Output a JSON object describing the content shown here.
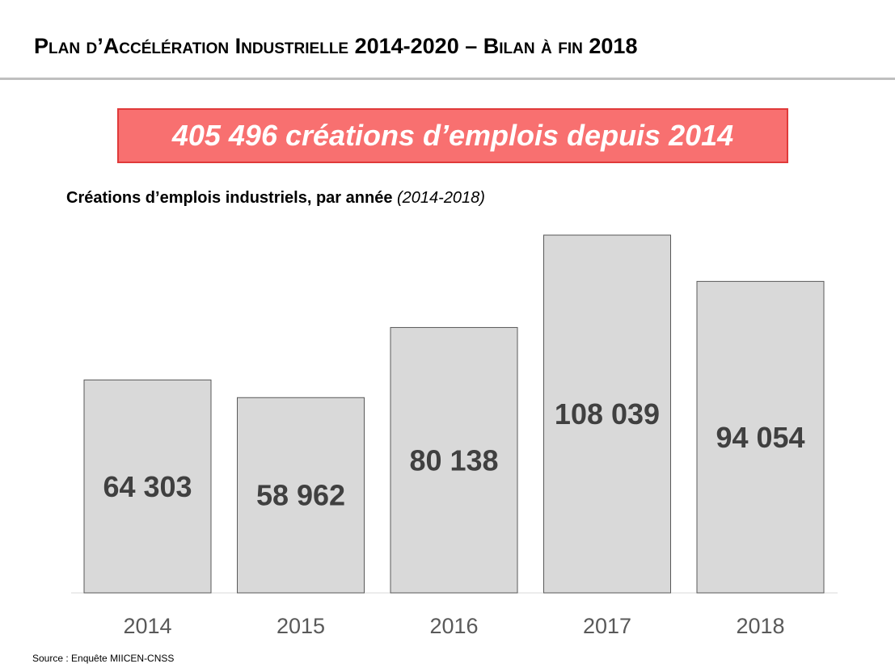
{
  "slide": {
    "title": "Plan d’Accélération Industrielle 2014-2020 – Bilan à fin 2018",
    "highlight": "405 496 créations d’emplois depuis 2014",
    "source": "Source : Enquête MIICEN-CNSS"
  },
  "chart_data": {
    "type": "bar",
    "title": "Créations d’emplois industriels, par année",
    "title_range": "(2014-2018)",
    "categories": [
      "2014",
      "2015",
      "2016",
      "2017",
      "2018"
    ],
    "values": [
      64303,
      58962,
      80138,
      108039,
      94054
    ],
    "value_labels": [
      "64 303",
      "58 962",
      "80 138",
      "108 039",
      "94 054"
    ],
    "ylim": [
      0,
      120000
    ],
    "grid": false,
    "legend": "none",
    "colors": {
      "bar_fill": "#d9d9d9",
      "bar_stroke": "#595959",
      "value_label": "#404040",
      "tick_label": "#595959",
      "baseline": "#d9d9d9"
    }
  }
}
